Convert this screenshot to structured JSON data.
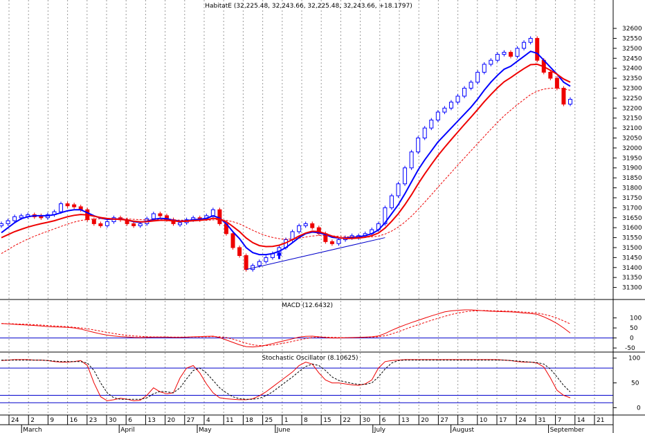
{
  "chart_data": [
    {
      "panel": "price",
      "type": "candlestick",
      "title": "HabitatE (32,225.48, 32,243.66, 32,225.48, 32,243.66, +18.1797)",
      "ylim": [
        31250,
        32680
      ],
      "y_ticks": [
        32600,
        32550,
        32500,
        32450,
        32400,
        32350,
        32300,
        32250,
        32200,
        32150,
        32100,
        32050,
        32000,
        31950,
        31900,
        31850,
        31800,
        31750,
        31700,
        31650,
        31600,
        31550,
        31500,
        31450,
        31400,
        31350,
        31300
      ],
      "grid": "vertical dotted",
      "closes": [
        31620,
        31635,
        31655,
        31660,
        31665,
        31660,
        31650,
        31665,
        31680,
        31720,
        31715,
        31705,
        31690,
        31640,
        31620,
        31610,
        31630,
        31650,
        31640,
        31620,
        31610,
        31620,
        31645,
        31670,
        31660,
        31640,
        31620,
        31625,
        31640,
        31650,
        31645,
        31660,
        31690,
        31620,
        31570,
        31500,
        31460,
        31390,
        31410,
        31430,
        31450,
        31470,
        31500,
        31540,
        31580,
        31610,
        31620,
        31600,
        31570,
        31530,
        31520,
        31540,
        31550,
        31560,
        31560,
        31570,
        31590,
        31620,
        31700,
        31760,
        31820,
        31900,
        31980,
        32050,
        32100,
        32140,
        32180,
        32200,
        32230,
        32260,
        32300,
        32330,
        32380,
        32420,
        32440,
        32470,
        32480,
        32460,
        32500,
        32530,
        32550,
        32440,
        32380,
        32350,
        32300,
        32220,
        32244
      ],
      "series": [
        {
          "name": "",
          "color": "#0000ff",
          "values": [
            31575,
            31600,
            31625,
            31645,
            31655,
            31660,
            31660,
            31660,
            31665,
            31675,
            31685,
            31690,
            31690,
            31675,
            31660,
            31648,
            31642,
            31643,
            31644,
            31638,
            31630,
            31627,
            31632,
            31642,
            31647,
            31645,
            31638,
            31633,
            31635,
            31640,
            31642,
            31647,
            31660,
            31648,
            31620,
            31580,
            31545,
            31500,
            31475,
            31465,
            31465,
            31470,
            31482,
            31500,
            31525,
            31550,
            31570,
            31578,
            31575,
            31565,
            31552,
            31548,
            31548,
            31552,
            31554,
            31560,
            31570,
            31588,
            31625,
            31670,
            31715,
            31770,
            31830,
            31890,
            31940,
            31985,
            32030,
            32065,
            32100,
            32135,
            32170,
            32205,
            32245,
            32290,
            32330,
            32365,
            32395,
            32410,
            32435,
            32460,
            32485,
            32475,
            32440,
            32405,
            32370,
            32330,
            32310
          ]
        },
        {
          "name": "",
          "color": "#ee0000",
          "values": [
            31550,
            31565,
            31580,
            31592,
            31603,
            31612,
            31620,
            31627,
            31635,
            31645,
            31655,
            31662,
            31666,
            31664,
            31658,
            31651,
            31646,
            31643,
            31642,
            31638,
            31633,
            31629,
            31630,
            31634,
            31637,
            31637,
            31634,
            31631,
            31632,
            31635,
            31637,
            31640,
            31647,
            31644,
            31630,
            31606,
            31580,
            31548,
            31525,
            31510,
            31505,
            31506,
            31512,
            31524,
            31540,
            31558,
            31573,
            31582,
            31580,
            31570,
            31558,
            31550,
            31546,
            31546,
            31548,
            31552,
            31560,
            31573,
            31598,
            31632,
            31670,
            31715,
            31765,
            31820,
            31870,
            31917,
            31962,
            32003,
            32042,
            32080,
            32118,
            32155,
            32193,
            32232,
            32268,
            32302,
            32332,
            32353,
            32376,
            32398,
            32418,
            32420,
            32408,
            32390,
            32370,
            32346,
            32330
          ]
        },
        {
          "name": "",
          "color": "#ee0000",
          "dashed": true,
          "values": [
            31470,
            31490,
            31510,
            31527,
            31543,
            31557,
            31570,
            31582,
            31594,
            31606,
            31618,
            31628,
            31636,
            31641,
            31644,
            31645,
            31645,
            31645,
            31645,
            31644,
            31642,
            31640,
            31639,
            31639,
            31640,
            31640,
            31639,
            31638,
            31637,
            31637,
            31637,
            31637,
            31639,
            31640,
            31637,
            31630,
            31619,
            31603,
            31587,
            31572,
            31560,
            31551,
            31545,
            31542,
            31543,
            31547,
            31553,
            31558,
            31561,
            31561,
            31559,
            31557,
            31555,
            31553,
            31552,
            31552,
            31554,
            31558,
            31568,
            31583,
            31603,
            31628,
            31658,
            31692,
            31728,
            31765,
            31803,
            31840,
            31877,
            31914,
            31950,
            31986,
            32022,
            32058,
            32094,
            32128,
            32161,
            32190,
            32217,
            32243,
            32268,
            32285,
            32295,
            32300,
            32300,
            32296,
            32290
          ]
        }
      ],
      "annotations": [
        "up arrow near 31450 in late May",
        "trendline from mid-May low (~31390) to early July (~31550)"
      ]
    },
    {
      "panel": "macd",
      "type": "line",
      "title": "MACD (12.6432)",
      "ylim": [
        -60,
        140
      ],
      "y_ticks": [
        100,
        50,
        0,
        -50
      ],
      "zero_line": 0,
      "series": [
        {
          "name": "",
          "color": "#ee0000",
          "values": [
            72,
            70,
            68,
            66,
            64,
            62,
            60,
            57,
            55,
            54,
            53,
            50,
            44,
            36,
            28,
            20,
            14,
            10,
            7,
            5,
            3,
            2,
            3,
            4,
            4,
            4,
            3,
            3,
            4,
            6,
            7,
            8,
            9,
            2,
            -10,
            -22,
            -34,
            -43,
            -45,
            -42,
            -36,
            -28,
            -20,
            -12,
            -4,
            4,
            8,
            9,
            6,
            2,
            0,
            0,
            1,
            2,
            3,
            4,
            6,
            10,
            22,
            38,
            52,
            65,
            77,
            88,
            99,
            110,
            120,
            130,
            135,
            138,
            140,
            140,
            138,
            135,
            133,
            132,
            131,
            130,
            128,
            124,
            122,
            118,
            105,
            90,
            72,
            50,
            25
          ]
        },
        {
          "name": "",
          "color": "#ee0000",
          "dashed": true,
          "values": [
            72,
            71,
            70,
            69,
            68,
            66,
            64,
            62,
            60,
            58,
            56,
            53,
            50,
            46,
            40,
            34,
            28,
            22,
            17,
            13,
            10,
            8,
            6,
            5,
            5,
            5,
            4,
            4,
            4,
            5,
            5,
            6,
            7,
            6,
            2,
            -6,
            -16,
            -26,
            -34,
            -38,
            -38,
            -35,
            -30,
            -24,
            -17,
            -10,
            -3,
            2,
            4,
            4,
            3,
            2,
            1,
            1,
            2,
            3,
            4,
            6,
            11,
            20,
            31,
            43,
            55,
            66,
            77,
            88,
            98,
            108,
            117,
            124,
            130,
            134,
            136,
            137,
            136,
            135,
            134,
            133,
            131,
            129,
            127,
            124,
            118,
            110,
            99,
            85,
            70
          ]
        }
      ]
    },
    {
      "panel": "stochastic",
      "type": "line",
      "title": "Stochastic Oscillator (8.10625)",
      "ylim": [
        -12,
        108
      ],
      "y_ticks": [
        100,
        50,
        0
      ],
      "reference_lines": [
        80,
        25,
        10
      ],
      "series": [
        {
          "name": "",
          "color": "#ee0000",
          "values": [
            95,
            96,
            97,
            97,
            97,
            96,
            96,
            95,
            93,
            92,
            92,
            93,
            95,
            85,
            50,
            22,
            14,
            16,
            19,
            17,
            14,
            15,
            25,
            40,
            32,
            28,
            30,
            60,
            80,
            85,
            70,
            48,
            30,
            20,
            18,
            17,
            16,
            16,
            18,
            24,
            32,
            42,
            52,
            62,
            72,
            85,
            92,
            88,
            70,
            56,
            50,
            50,
            48,
            46,
            45,
            48,
            56,
            80,
            93,
            95,
            96,
            97,
            97,
            97,
            97,
            97,
            97,
            97,
            97,
            97,
            97,
            97,
            97,
            97,
            97,
            97,
            96,
            95,
            93,
            92,
            92,
            90,
            82,
            60,
            35,
            25,
            20
          ]
        },
        {
          "name": "",
          "color": "#000000",
          "dashed": true,
          "values": [
            96,
            96,
            96,
            96,
            96,
            96,
            96,
            95,
            94,
            93,
            93,
            93,
            93,
            90,
            75,
            50,
            30,
            20,
            17,
            17,
            17,
            17,
            20,
            28,
            33,
            32,
            30,
            40,
            58,
            75,
            80,
            70,
            55,
            40,
            30,
            22,
            18,
            17,
            17,
            19,
            24,
            32,
            42,
            52,
            62,
            73,
            83,
            88,
            85,
            75,
            62,
            55,
            52,
            49,
            47,
            47,
            50,
            62,
            78,
            90,
            95,
            96,
            96,
            96,
            96,
            96,
            96,
            96,
            96,
            96,
            96,
            96,
            96,
            96,
            96,
            96,
            96,
            95,
            94,
            93,
            92,
            91,
            88,
            78,
            62,
            45,
            32
          ]
        }
      ]
    }
  ],
  "x_axis": {
    "day_labels": [
      "24",
      "2",
      "9",
      "16",
      "23",
      "30",
      "6",
      "13",
      "20",
      "27",
      "4",
      "11",
      "18",
      "25",
      "1",
      "8",
      "15",
      "22",
      "30",
      "6",
      "13",
      "20",
      "27",
      "3",
      "10",
      "17",
      "24",
      "31",
      "7",
      "14",
      "21"
    ],
    "month_labels": [
      "March",
      "April",
      "May",
      "June",
      "July",
      "August",
      "September"
    ]
  },
  "colors": {
    "blue": "#0000ff",
    "red": "#ee0000",
    "grid": "#999999",
    "frame": "#000000"
  }
}
